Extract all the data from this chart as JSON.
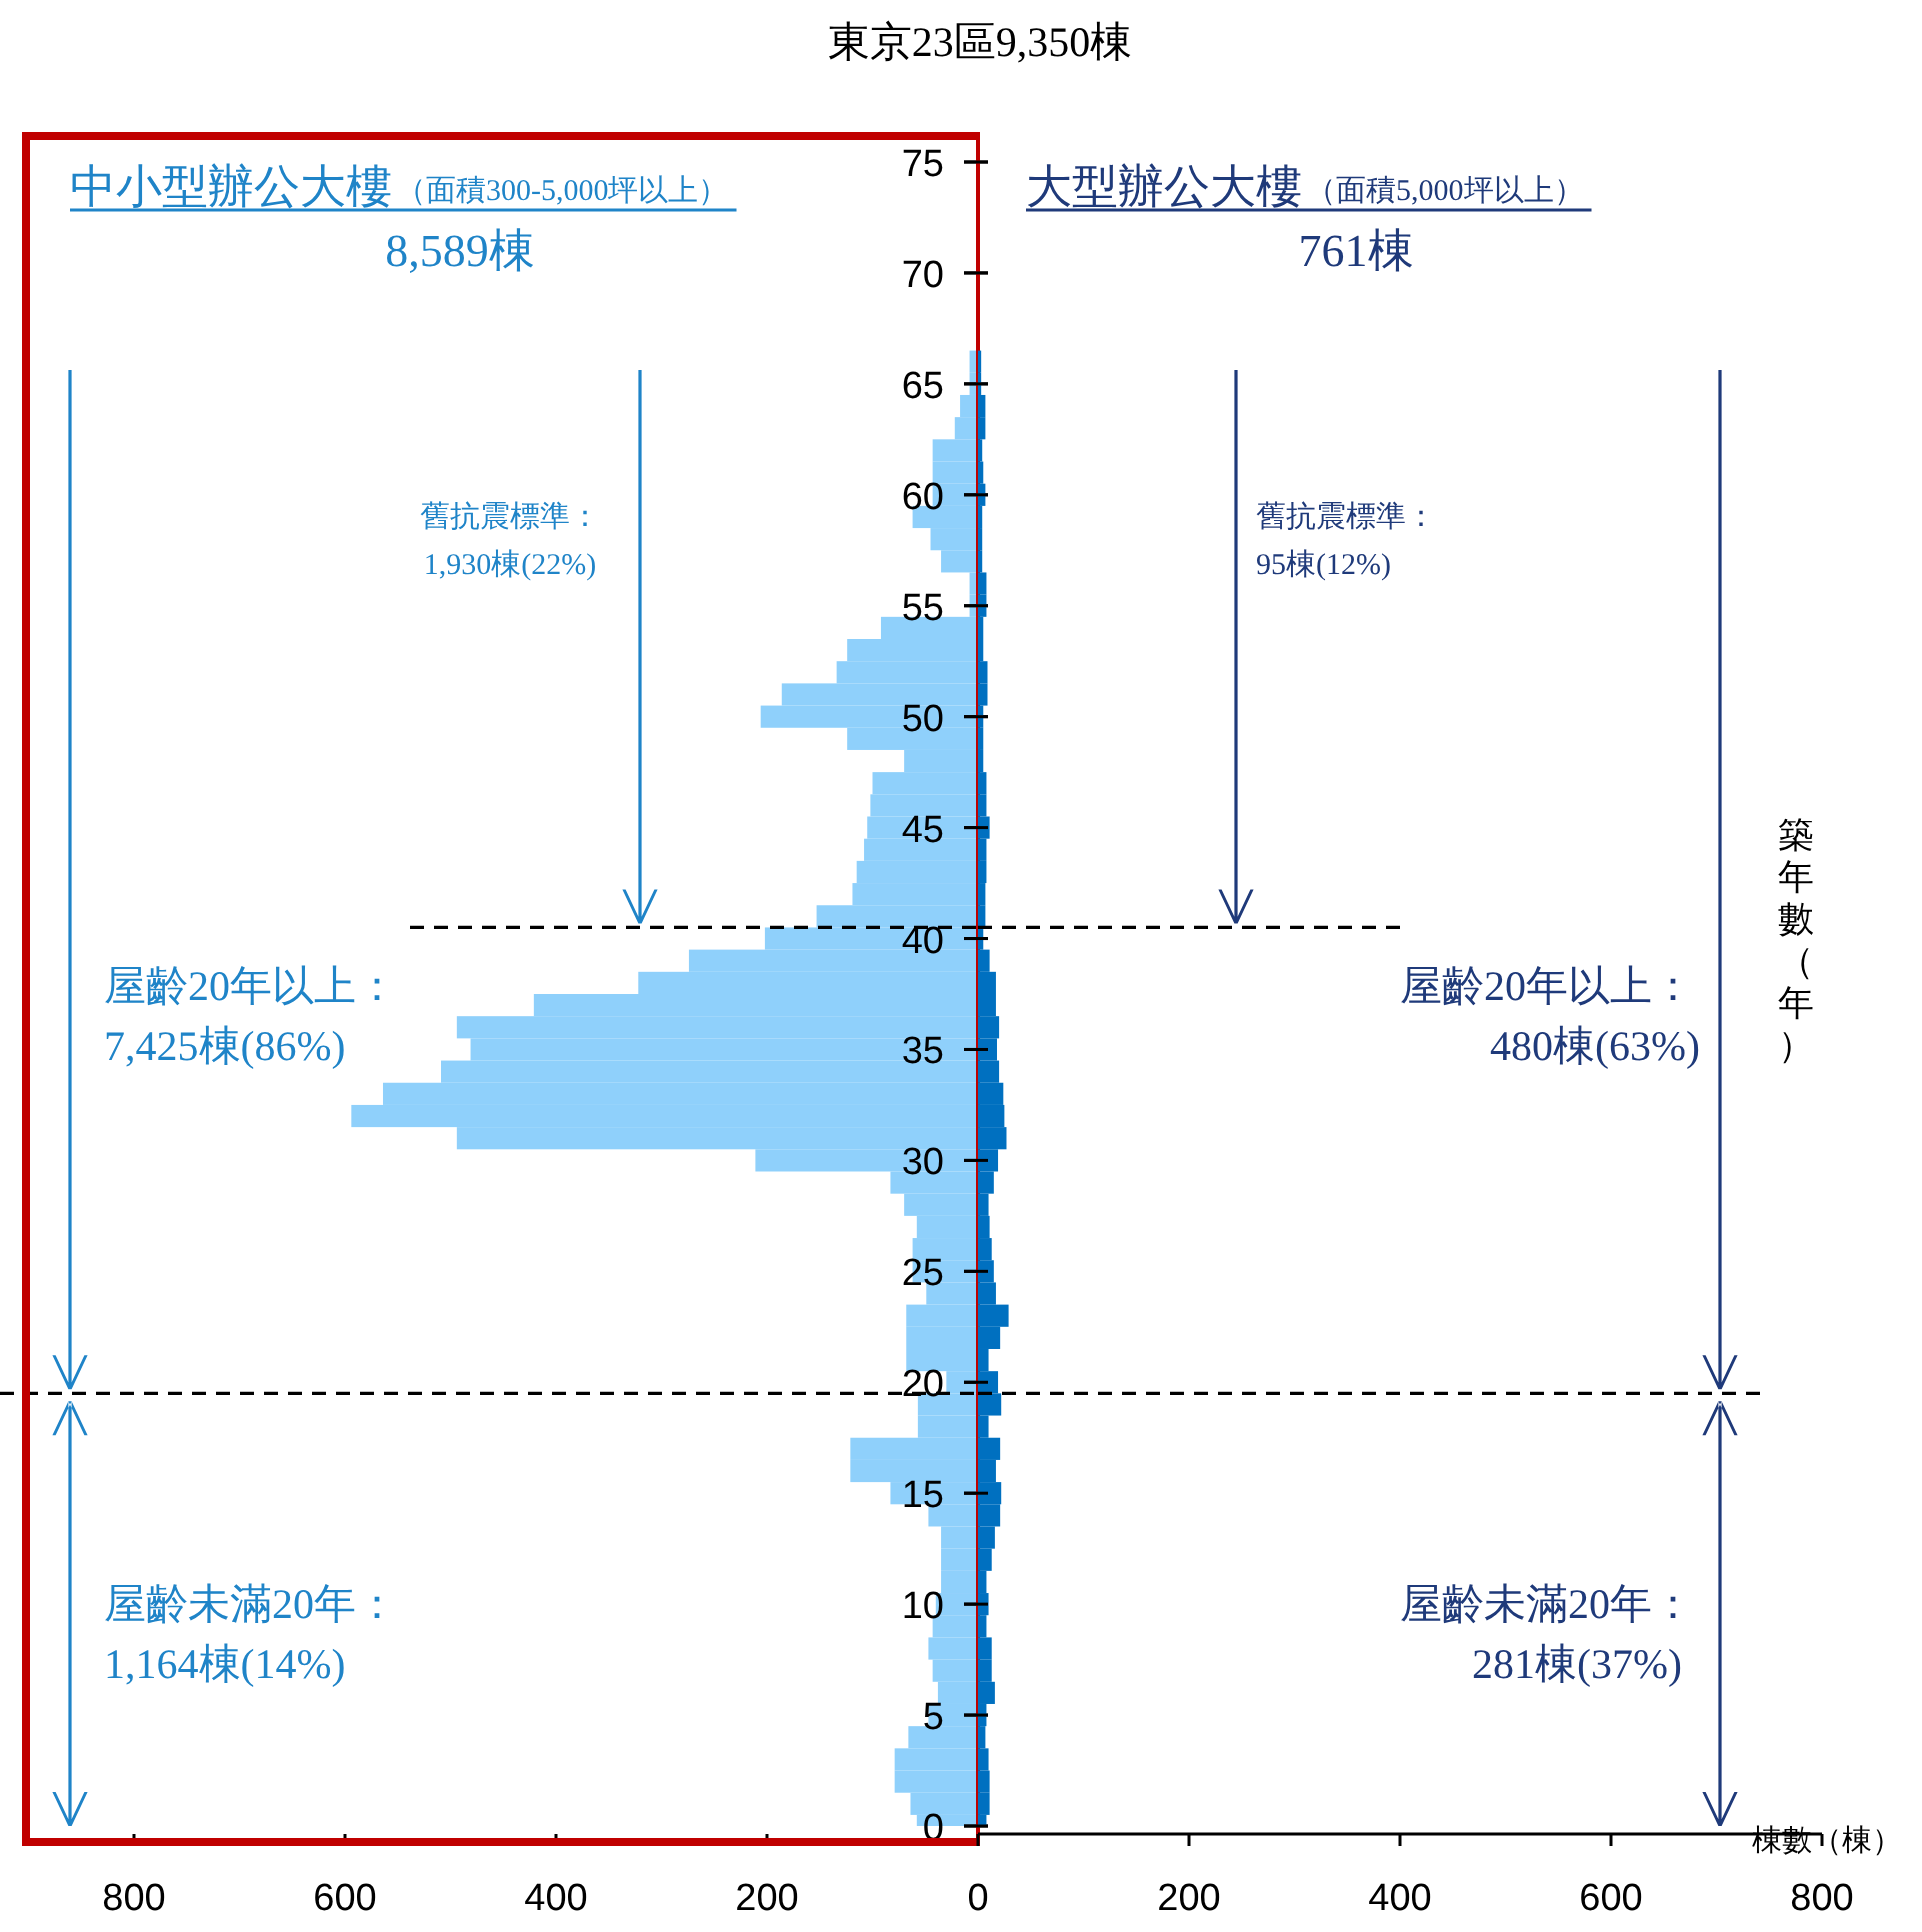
{
  "chart_data": [
    {
      "type": "other",
      "title": "東京23區9,350棟"
    },
    {
      "type": "bar",
      "orientation": "horizontal",
      "title": "中小型辦公大樓",
      "subtitle": "（面積300-5,000坪以上）",
      "color": "#8fd0fb",
      "annotations": [
        "8,589棟",
        "舊抗震標準：",
        "1,930棟(22%)",
        "屋齡20年以上：",
        "7,425棟(86%)",
        "屋齡未滿20年：",
        "1,164棟(14%)"
      ],
      "x": [
        0,
        1,
        2,
        3,
        4,
        5,
        6,
        7,
        8,
        9,
        10,
        11,
        12,
        13,
        14,
        15,
        16,
        17,
        18,
        19,
        20,
        21,
        22,
        23,
        24,
        25,
        26,
        27,
        28,
        29,
        30,
        31,
        32,
        33,
        34,
        35,
        36,
        37,
        38,
        39,
        40,
        41,
        42,
        43,
        44,
        45,
        46,
        47,
        48,
        49,
        50,
        51,
        52,
        53,
        54,
        55,
        56,
        57,
        58,
        59,
        60,
        61,
        62,
        63,
        64,
        65,
        66
      ],
      "values": [
        58,
        64,
        79,
        79,
        66,
        47,
        38,
        43,
        47,
        43,
        40,
        35,
        35,
        35,
        47,
        83,
        121,
        121,
        57,
        57,
        30,
        68,
        68,
        68,
        49,
        62,
        62,
        58,
        70,
        83,
        211,
        494,
        594,
        564,
        509,
        481,
        494,
        421,
        322,
        274,
        202,
        153,
        119,
        115,
        108,
        105,
        102,
        100,
        70,
        124,
        206,
        186,
        134,
        124,
        92,
        8,
        8,
        35,
        45,
        62,
        43,
        43,
        43,
        22,
        17,
        8,
        8
      ],
      "xlim": [
        800,
        0
      ],
      "xticks": [
        800,
        600,
        400,
        200,
        0
      ],
      "ylim": [
        0,
        75
      ],
      "yticks": [
        0,
        5,
        10,
        15,
        20,
        25,
        30,
        35,
        40,
        45,
        50,
        55,
        60,
        65,
        70,
        75
      ],
      "ref_lines": [
        {
          "axis": "y",
          "value": 40.5,
          "line_style": "dashed",
          "color": "#000000"
        },
        {
          "axis": "y",
          "value": 19.5,
          "line_style": "dashed",
          "color": "#000000"
        }
      ]
    },
    {
      "type": "bar",
      "orientation": "horizontal",
      "title": "大型辦公大樓",
      "subtitle": "（面積5,000坪以上）",
      "color": "#0070c0",
      "annotations": [
        "761棟",
        "舊抗震標準：",
        "95棟(12%)",
        "屋齡20年以上：",
        "480棟(63%)",
        "屋齡未滿20年：",
        "281棟(37%)"
      ],
      "xlabel": "棟數（棟）",
      "ylabel": "築年數（年）",
      "x": [
        0,
        1,
        2,
        3,
        4,
        5,
        6,
        7,
        8,
        9,
        10,
        11,
        12,
        13,
        14,
        15,
        16,
        17,
        18,
        19,
        20,
        21,
        22,
        23,
        24,
        25,
        26,
        27,
        28,
        29,
        30,
        31,
        32,
        33,
        34,
        35,
        36,
        37,
        38,
        39,
        40,
        41,
        42,
        43,
        44,
        45,
        46,
        47,
        48,
        49,
        50,
        51,
        52,
        53,
        54,
        55,
        56,
        57,
        58,
        59,
        60,
        61,
        62,
        63,
        64,
        65,
        66
      ],
      "values": [
        8,
        11,
        11,
        10,
        7,
        8,
        16,
        13,
        13,
        8,
        10,
        8,
        13,
        16,
        21,
        22,
        17,
        21,
        10,
        22,
        19,
        10,
        21,
        29,
        17,
        15,
        13,
        11,
        10,
        15,
        19,
        27,
        25,
        24,
        20,
        18,
        20,
        17,
        17,
        11,
        5,
        7,
        7,
        8,
        8,
        11,
        8,
        8,
        5,
        5,
        5,
        9,
        9,
        5,
        5,
        8,
        8,
        4,
        4,
        4,
        7,
        5,
        4,
        7,
        7,
        3,
        3
      ],
      "xlim": [
        0,
        800
      ],
      "xticks": [
        {
          "value": 0,
          "label": null
        },
        200,
        400,
        600,
        800
      ],
      "ylim": [
        0,
        75
      ],
      "yticks": [
        0,
        5,
        10,
        15,
        20,
        25,
        30,
        35,
        40,
        45,
        50,
        55,
        60,
        65,
        70,
        75
      ],
      "tick_labels": "x",
      "ref_lines": [
        {
          "axis": "y",
          "value": 40.5,
          "line_style": "dashed",
          "color": "#000000"
        },
        {
          "axis": "y",
          "value": 19.5,
          "line_style": "dashed",
          "color": "#000000"
        }
      ]
    }
  ]
}
